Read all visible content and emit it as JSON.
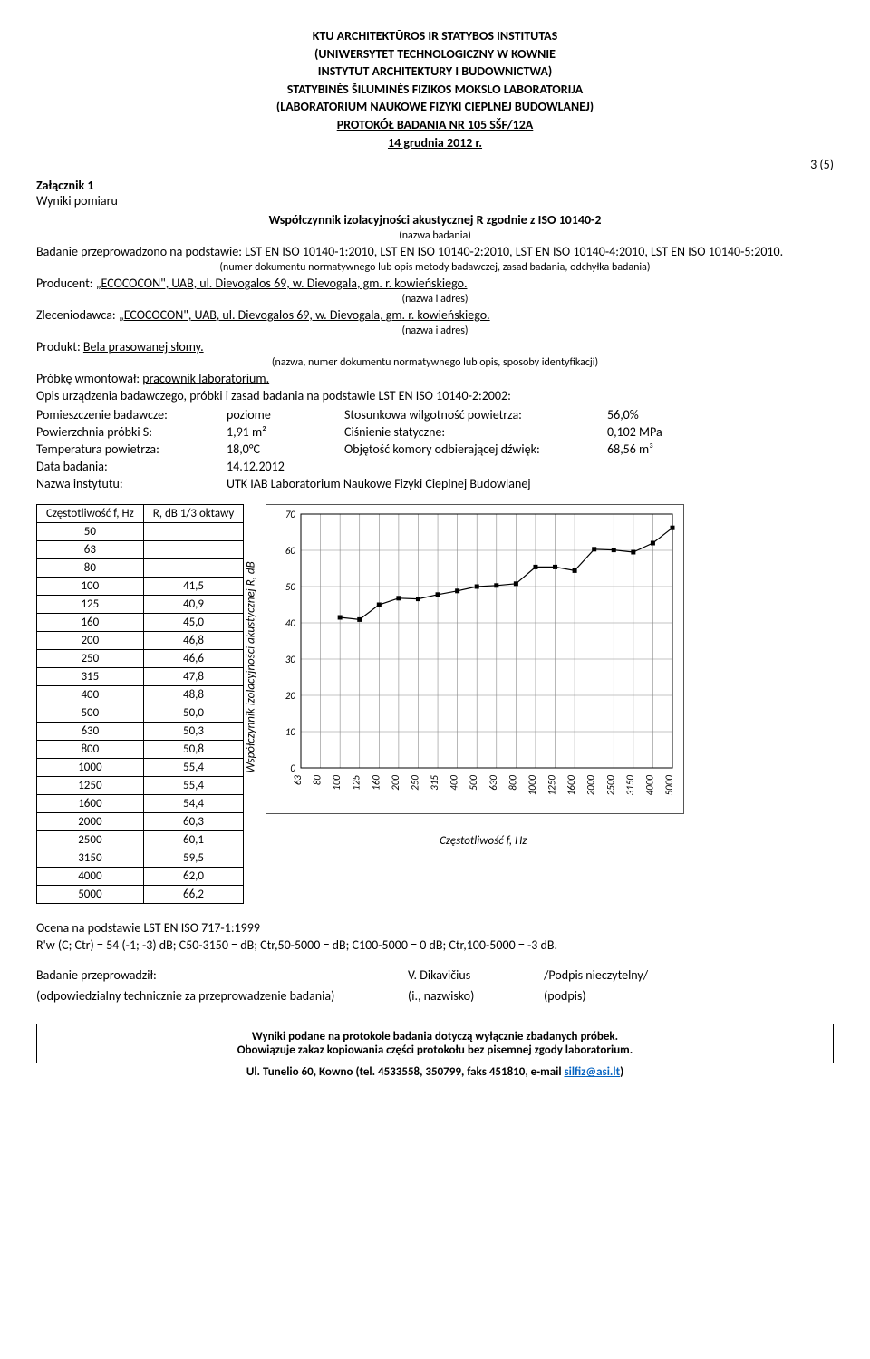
{
  "header": {
    "line1": "KTU ARCHITEKTŪROS IR STATYBOS INSTITUTAS",
    "line2": "(UNIWERSYTET TECHNOLOGICZNY W KOWNIE",
    "line3": "INSTYTUT ARCHITEKTURY I BUDOWNICTWA)",
    "line4": "STATYBINĖS ŠILUMINĖS FIZIKOS MOKSLO LABORATORIJA",
    "line5": "(LABORATORIUM NAUKOWE FIZYKI CIEPLNEJ BUDOWLANEJ)",
    "protocol": "PROTOKÓŁ BADANIA NR 105 SŠF/12A",
    "date": "14 grudnia 2012 r.",
    "page": "3 (5)"
  },
  "attachment": {
    "label": "Załącznik 1",
    "sub": "Wyniki pomiaru",
    "title": "Współczynnik izolacyjności akustycznej R zgodnie z ISO 10140-2",
    "title_note": "(nazwa badania)"
  },
  "study": {
    "basis_label": "Badanie przeprowadzono na podstawie: ",
    "basis": "LST EN ISO 10140-1:2010, LST EN ISO 10140-2:2010, LST EN ISO 10140-4:2010, LST EN ISO 10140-5:2010.",
    "basis_note": "(numer dokumentu normatywnego lub opis metody badawczej, zasad badania, odchyłka badania)",
    "producer_label": "Producent: ",
    "producer": "„ECOCOCON\", UAB, ul. Dievogalos 69, w. Dievogala, gm. r. kowieńskiego.",
    "producer_note": "(nazwa  i adres)",
    "client_label": "Zleceniodawca: ",
    "client": "„ECOCOCON\", UAB, ul. Dievogalos 69, w. Dievogala, gm. r. kowieńskiego.",
    "client_note": "(nazwa  i adres)",
    "product_label": "Produkt: ",
    "product": "Bela prasowanej słomy.",
    "product_note": "(nazwa, numer dokumentu normatywnego lub opis, sposoby identyfikacji)",
    "sample_label": "Próbkę wmontował: ",
    "sample": "pracownik laboratorium.",
    "desc": "Opis urządzenia badawczego, próbki i zasad badania na podstawie LST EN ISO 10140-2:2002:"
  },
  "params": {
    "room_label": "Pomieszczenie badawcze:",
    "room_val": "poziome",
    "humidity_label": "Stosunkowa wilgotność powietrza:",
    "humidity_val": "56,0%",
    "area_label": "Powierzchnia próbki S:",
    "area_val": "1,91 m²",
    "pressure_label": "Ciśnienie statyczne:",
    "pressure_val": "0,102 MPa",
    "temp_label": "Temperatura powietrza:",
    "temp_val": "18,0°C",
    "volume_label": "Objętość komory odbierającej dźwięk:",
    "volume_val": "68,56 m³",
    "date_label": "Data badania:",
    "date_val": "14.12.2012",
    "inst_label": "Nazwa instytutu:",
    "inst_val": "UTK IAB Laboratorium Naukowe Fizyki Cieplnej Budowlanej"
  },
  "table": {
    "col1": "Częstotliwość f, Hz",
    "col2": "R, dB 1/3 oktawy",
    "rows": [
      {
        "f": "50",
        "r": ""
      },
      {
        "f": "63",
        "r": ""
      },
      {
        "f": "80",
        "r": ""
      },
      {
        "f": "100",
        "r": "41,5"
      },
      {
        "f": "125",
        "r": "40,9"
      },
      {
        "f": "160",
        "r": "45,0"
      },
      {
        "f": "200",
        "r": "46,8"
      },
      {
        "f": "250",
        "r": "46,6"
      },
      {
        "f": "315",
        "r": "47,8"
      },
      {
        "f": "400",
        "r": "48,8"
      },
      {
        "f": "500",
        "r": "50,0"
      },
      {
        "f": "630",
        "r": "50,3"
      },
      {
        "f": "800",
        "r": "50,8"
      },
      {
        "f": "1000",
        "r": "55,4"
      },
      {
        "f": "1250",
        "r": "55,4"
      },
      {
        "f": "1600",
        "r": "54,4"
      },
      {
        "f": "2000",
        "r": "60,3"
      },
      {
        "f": "2500",
        "r": "60,1"
      },
      {
        "f": "3150",
        "r": "59,5"
      },
      {
        "f": "4000",
        "r": "62,0"
      },
      {
        "f": "5000",
        "r": "66,2"
      }
    ]
  },
  "chart": {
    "type": "line",
    "ylabel": "Współczynnik izolacyjności akustycznej R, dB",
    "xlabel": "Częstotliwość f, Hz",
    "ylim": [
      0,
      70
    ],
    "ytick_step": 10,
    "x_categories": [
      "63",
      "80",
      "100",
      "125",
      "160",
      "200",
      "250",
      "315",
      "400",
      "500",
      "630",
      "800",
      "1000",
      "1250",
      "1600",
      "2000",
      "2500",
      "3150",
      "4000",
      "5000"
    ],
    "series": {
      "values": [
        null,
        null,
        41.5,
        40.9,
        45.0,
        46.8,
        46.6,
        47.8,
        48.8,
        50.0,
        50.3,
        50.8,
        55.4,
        55.4,
        54.4,
        60.3,
        60.1,
        59.5,
        62.0,
        66.2
      ],
      "line_color": "#000000",
      "marker": "square",
      "marker_size": 5,
      "line_width": 1.2
    },
    "grid_color": "#888888",
    "background_color": "#ffffff",
    "axis_fontsize": 11,
    "label_fontsize": 13
  },
  "evaluation": {
    "line1": "Ocena na podstawie LST EN ISO 717-1:1999",
    "line2": "R'w (C; Ctr) = 54 (-1; -3) dB; C50-3150 = dB; Ctr,50-5000 = dB; C100-5000 = 0 dB; Ctr,100-5000 = -3 dB."
  },
  "signature": {
    "who_label": "Badanie przeprowadził:",
    "who_val": "V. Dikavičius",
    "sig": "/Podpis nieczytelny/",
    "resp_label": "(odpowiedzialny technicznie za przeprowadzenie badania)",
    "resp_val": "(i., nazwisko)",
    "resp_sig": "(podpis)"
  },
  "footer": {
    "box1": "Wyniki podane na protokole badania dotyczą wyłącznie zbadanych próbek.",
    "box2": "Obowiązuje zakaz kopiowania części protokołu bez pisemnej zgody laboratorium.",
    "contact_prefix": "Ul. Tunelio 60, Kowno (tel. 4533558, 350799, faks 451810, e-mail ",
    "email": "silfiz@asi.lt",
    "contact_suffix": ")"
  }
}
